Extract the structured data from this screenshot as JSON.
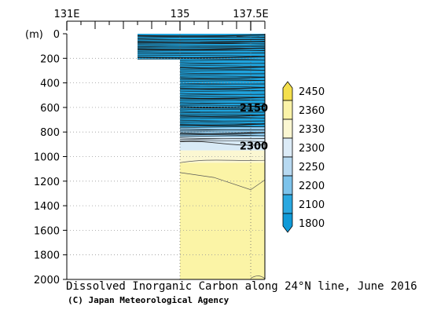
{
  "chart_data": {
    "type": "heatmap",
    "title": "Dissolved Inorganic Carbon along 24°N line, June 2016",
    "credit": "(C) Japan Meteorological Agency",
    "y_unit_label": "(m)",
    "x_ticks": [
      {
        "value": 131,
        "label": "131E"
      },
      {
        "value": 135,
        "label": "135"
      },
      {
        "value": 137.5,
        "label": "137.5E"
      }
    ],
    "xlim": [
      131,
      138
    ],
    "ylim": [
      0,
      2000
    ],
    "y_inverted": true,
    "y_ticks": [
      0,
      200,
      400,
      600,
      800,
      1000,
      1200,
      1400,
      1600,
      1800,
      2000
    ],
    "contour_labels": [
      {
        "text": "2150",
        "lon": 137.5,
        "depth": 600
      },
      {
        "text": "2300",
        "lon": 137.5,
        "depth": 910
      }
    ],
    "colorbar": {
      "levels": [
        "2450",
        "2360",
        "2330",
        "2300",
        "2250",
        "2200",
        "2100",
        "1800"
      ],
      "colors": [
        "#f4df4c",
        "#fbf3a8",
        "#fbf7d2",
        "#dcebf7",
        "#b7d9f1",
        "#7dc3eb",
        "#2aa8e0",
        "#0f9ad8"
      ]
    },
    "data_coverage": [
      {
        "lon_from": 133.5,
        "lon_to": 135,
        "depth_to": 210
      },
      {
        "lon_from": 135,
        "lon_to": 138,
        "depth_to": 2000
      }
    ],
    "bands": [
      {
        "depth_from": 0,
        "depth_to": 760,
        "color": "#1fa3dd"
      },
      {
        "depth_from": 760,
        "depth_to": 840,
        "color": "#8dcaee"
      },
      {
        "depth_from": 840,
        "depth_to": 950,
        "color": "#d8eaf6"
      },
      {
        "depth_from": 950,
        "depth_to": 1050,
        "color": "#fbf7d2"
      },
      {
        "depth_from": 1050,
        "depth_to": 2000,
        "color": "#fbf4a6"
      }
    ],
    "grid": true
  }
}
